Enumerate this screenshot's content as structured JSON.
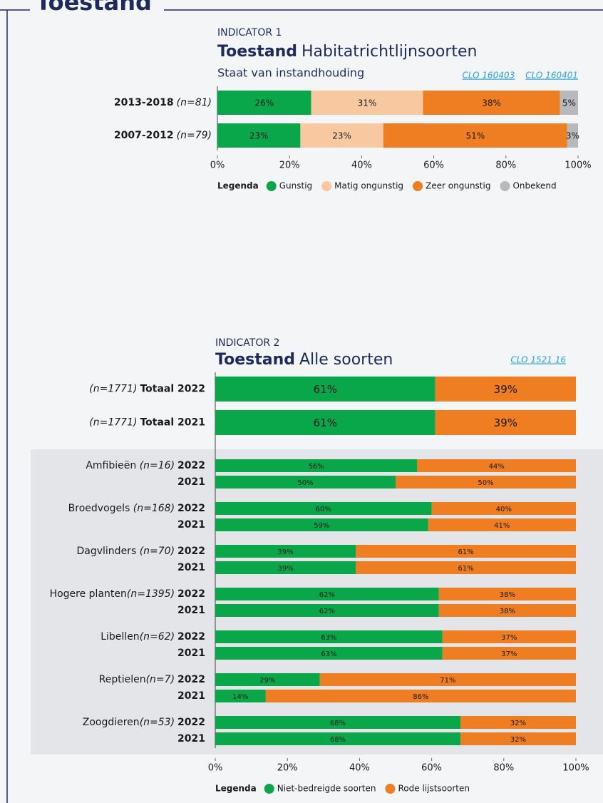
{
  "header": {
    "title": "Toestand"
  },
  "chart_data": [
    {
      "type": "stacked-barh",
      "label": "INDICATOR 1",
      "title_bold": "Toestand",
      "title": "Habitatrichtlijnsoorten",
      "subtitle": "Staat van instandhouding",
      "links": [
        "CLO 160403",
        "CLO 160401"
      ],
      "categories": [
        "2013-2018",
        "2007-2012"
      ],
      "n_labels": [
        "(n=81)",
        "(n=79)"
      ],
      "series": [
        {
          "name": "Gunstig",
          "color": "#0aa64a",
          "values": [
            26,
            23
          ],
          "value_labels": [
            "26%",
            "23%"
          ]
        },
        {
          "name": "Matig ongunstig",
          "color": "#f8c9a0",
          "values": [
            31,
            23
          ],
          "value_labels": [
            "31%",
            "23%"
          ]
        },
        {
          "name": "Zeer ongunstig",
          "color": "#ef7d22",
          "values": [
            38,
            51
          ],
          "value_labels": [
            "38%",
            "51%"
          ]
        },
        {
          "name": "Onbekend",
          "color": "#b8b9bc",
          "values": [
            5,
            3
          ],
          "value_labels": [
            "5%",
            "3%"
          ]
        }
      ],
      "xlim": [
        0,
        100
      ],
      "xticks": [
        {
          "value": 0,
          "label": "0%"
        },
        {
          "value": 20,
          "label": "20%"
        },
        {
          "value": 40,
          "label": "40%"
        },
        {
          "value": 60,
          "label": "60%"
        },
        {
          "value": 80,
          "label": "80%"
        },
        {
          "value": 100,
          "label": "100%"
        }
      ],
      "legend_title": "Legenda"
    },
    {
      "type": "stacked-barh",
      "label": "INDICATOR 2",
      "title_bold": "Toestand",
      "title": "Alle soorten",
      "links": [
        "CLO 1521 16"
      ],
      "categories": [
        "Totaal 2022",
        "Totaal 2021",
        "2022",
        "2021",
        "2022",
        "2021",
        "2022",
        "2021",
        "2022",
        "2021",
        "2022",
        "2021",
        "2022",
        "2021",
        "2022",
        "2021"
      ],
      "group_labels": [
        null,
        null,
        "Amfibieën ",
        null,
        "Broedvogels ",
        null,
        "Dagvlinders ",
        null,
        "Hogere planten",
        null,
        "Libellen",
        null,
        "Reptielen",
        null,
        "Zoogdieren",
        null
      ],
      "n_labels": [
        "(n=1771)",
        "(n=1771)",
        "(n=16)",
        null,
        "(n=168)",
        null,
        "(n=70)",
        null,
        "(n=1395)",
        null,
        "(n=62)",
        null,
        "(n=7)",
        null,
        "(n=53)",
        null
      ],
      "series": [
        {
          "name": "Niet-bedreigde soorten",
          "color": "#0aa64a",
          "values": [
            61,
            61,
            56,
            50,
            60,
            59,
            39,
            39,
            62,
            62,
            63,
            63,
            29,
            14,
            68,
            68
          ],
          "value_labels": [
            "61%",
            "61%",
            "56%",
            "50%",
            "60%",
            "59%",
            "39%",
            "39%",
            "62%",
            "62%",
            "63%",
            "63%",
            "29%",
            "14%",
            "68%",
            "68%"
          ]
        },
        {
          "name": "Rode lijstsoorten",
          "color": "#ef7d22",
          "values": [
            39,
            39,
            44,
            50,
            40,
            41,
            61,
            61,
            38,
            38,
            37,
            37,
            71,
            86,
            32,
            32
          ],
          "value_labels": [
            "39%",
            "39%",
            "44%",
            "50%",
            "40%",
            "41%",
            "61%",
            "61%",
            "38%",
            "38%",
            "37%",
            "37%",
            "71%",
            "86%",
            "32%",
            "32%"
          ]
        }
      ],
      "xlim": [
        0,
        100
      ],
      "xticks": [
        {
          "value": 0,
          "label": "0%"
        },
        {
          "value": 20,
          "label": "20%"
        },
        {
          "value": 40,
          "label": "40%"
        },
        {
          "value": 60,
          "label": "60%"
        },
        {
          "value": 80,
          "label": "80%"
        },
        {
          "value": 100,
          "label": "100%"
        }
      ],
      "legend_title": "Legenda"
    }
  ]
}
